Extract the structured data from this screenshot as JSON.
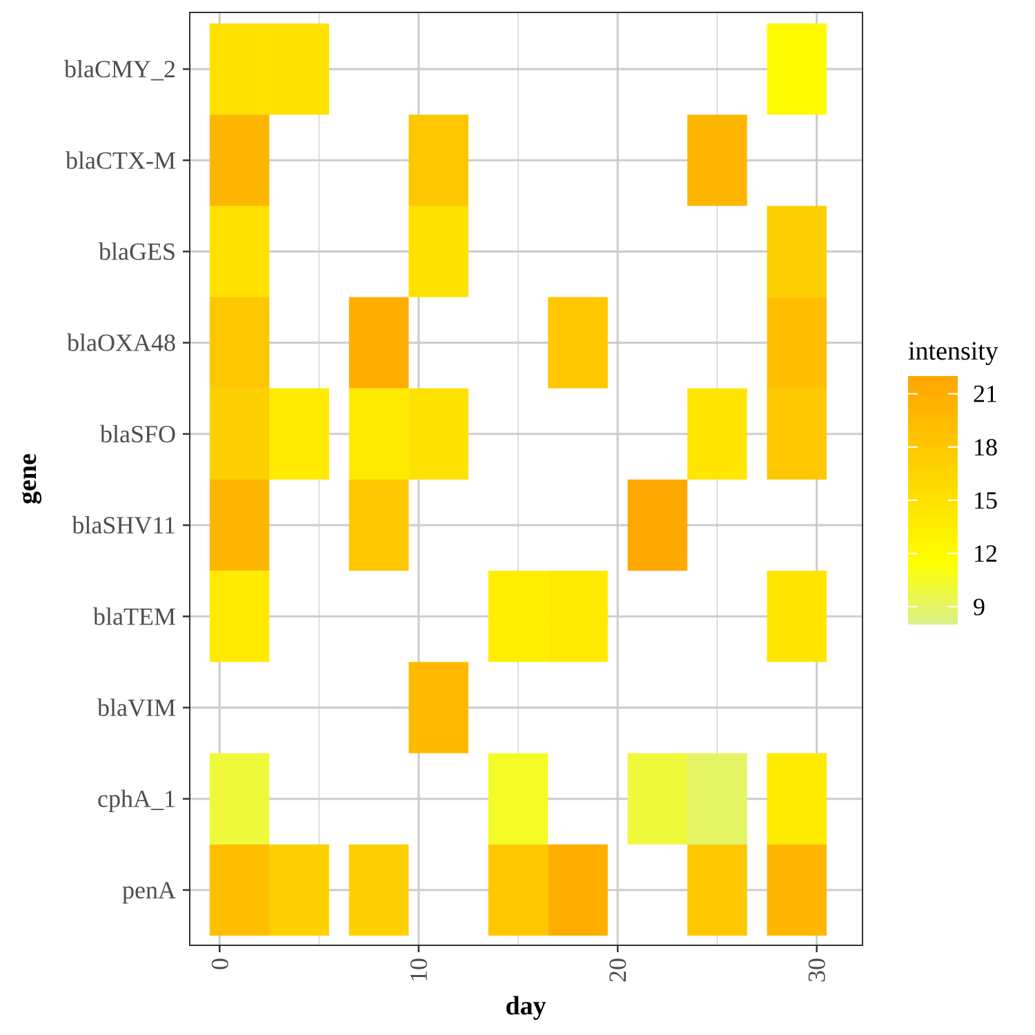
{
  "chart_data": {
    "type": "heatmap",
    "title": "",
    "xlabel": "day",
    "ylabel": "gene",
    "x_ticks": [
      0,
      10,
      20,
      30
    ],
    "x_tick_labels": [
      "0",
      "10",
      "20",
      "30"
    ],
    "xlim": [
      -1.5,
      32.3
    ],
    "tile_width_days": 3,
    "y_categories": [
      "blaCMY_2",
      "blaCTX-M",
      "blaGES",
      "blaOXA48",
      "blaSFO",
      "blaSHV11",
      "blaTEM",
      "blaVIM",
      "cphA_1",
      "penA"
    ],
    "grid": true,
    "legend": {
      "title": "intensity",
      "placement": "right",
      "range": [
        8,
        22
      ],
      "breaks": [
        21,
        18,
        15,
        12,
        9
      ],
      "break_labels": [
        "21",
        "18",
        "15",
        "12",
        "9"
      ],
      "color_low": "#d9f08a",
      "color_mid": "#ffff00",
      "color_high": "#ffa500"
    },
    "points": [
      {
        "gene": "blaCMY_2",
        "day": 1,
        "value": 15
      },
      {
        "gene": "blaCMY_2",
        "day": 4,
        "value": 15
      },
      {
        "gene": "blaCMY_2",
        "day": 29,
        "value": 12
      },
      {
        "gene": "blaCTX-M",
        "day": 1,
        "value": 20
      },
      {
        "gene": "blaCTX-M",
        "day": 11,
        "value": 18
      },
      {
        "gene": "blaCTX-M",
        "day": 25,
        "value": 20
      },
      {
        "gene": "blaGES",
        "day": 1,
        "value": 15
      },
      {
        "gene": "blaGES",
        "day": 11,
        "value": 15
      },
      {
        "gene": "blaGES",
        "day": 29,
        "value": 17
      },
      {
        "gene": "blaOXA48",
        "day": 1,
        "value": 18
      },
      {
        "gene": "blaOXA48",
        "day": 8,
        "value": 21
      },
      {
        "gene": "blaOXA48",
        "day": 18,
        "value": 18
      },
      {
        "gene": "blaOXA48",
        "day": 29,
        "value": 19
      },
      {
        "gene": "blaSFO",
        "day": 1,
        "value": 17
      },
      {
        "gene": "blaSFO",
        "day": 4,
        "value": 14
      },
      {
        "gene": "blaSFO",
        "day": 8,
        "value": 14
      },
      {
        "gene": "blaSFO",
        "day": 11,
        "value": 15
      },
      {
        "gene": "blaSFO",
        "day": 25,
        "value": 14.5
      },
      {
        "gene": "blaSFO",
        "day": 29,
        "value": 18
      },
      {
        "gene": "blaSHV11",
        "day": 1,
        "value": 20
      },
      {
        "gene": "blaSHV11",
        "day": 8,
        "value": 18
      },
      {
        "gene": "blaSHV11",
        "day": 22,
        "value": 21.5
      },
      {
        "gene": "blaTEM",
        "day": 1,
        "value": 14
      },
      {
        "gene": "blaTEM",
        "day": 15,
        "value": 13.5
      },
      {
        "gene": "blaTEM",
        "day": 18,
        "value": 14
      },
      {
        "gene": "blaTEM",
        "day": 29,
        "value": 14.5
      },
      {
        "gene": "blaVIM",
        "day": 11,
        "value": 19.5
      },
      {
        "gene": "cphA_1",
        "day": 1,
        "value": 10
      },
      {
        "gene": "cphA_1",
        "day": 15,
        "value": 10.5
      },
      {
        "gene": "cphA_1",
        "day": 22,
        "value": 10
      },
      {
        "gene": "cphA_1",
        "day": 25,
        "value": 9
      },
      {
        "gene": "cphA_1",
        "day": 29,
        "value": 14
      },
      {
        "gene": "penA",
        "day": 1,
        "value": 19
      },
      {
        "gene": "penA",
        "day": 4,
        "value": 17
      },
      {
        "gene": "penA",
        "day": 8,
        "value": 17
      },
      {
        "gene": "penA",
        "day": 15,
        "value": 18
      },
      {
        "gene": "penA",
        "day": 18,
        "value": 21
      },
      {
        "gene": "penA",
        "day": 25,
        "value": 18
      },
      {
        "gene": "penA",
        "day": 29,
        "value": 20
      }
    ]
  }
}
